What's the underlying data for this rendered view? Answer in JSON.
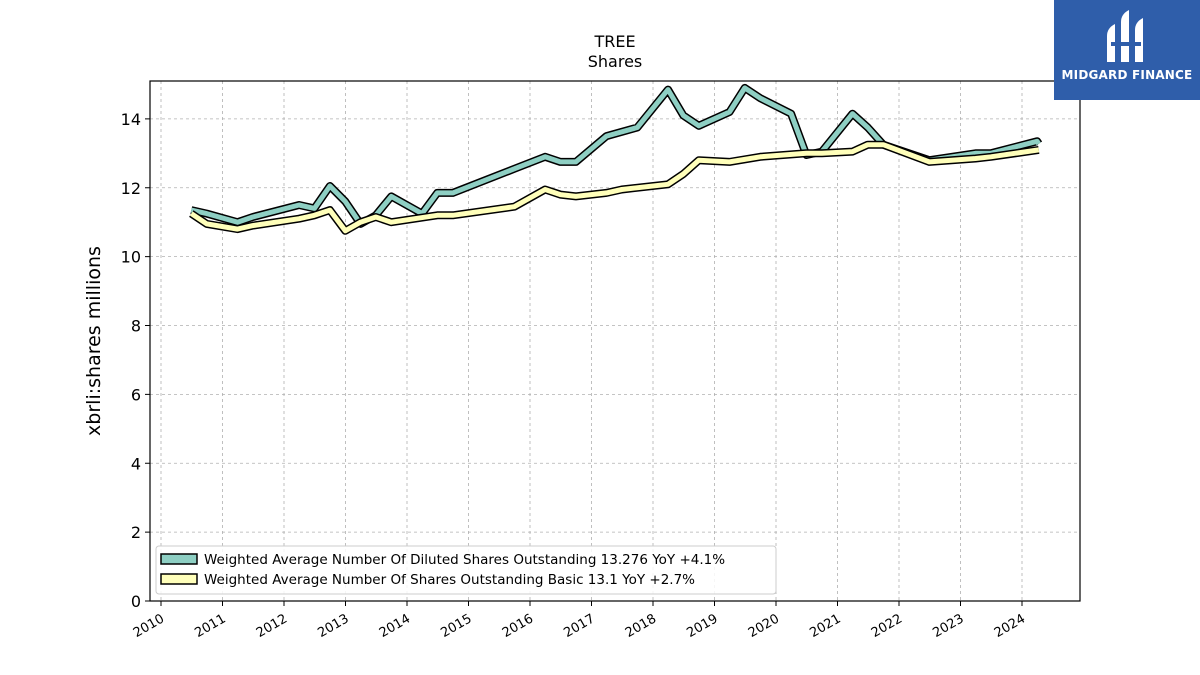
{
  "chart_data": {
    "type": "line",
    "title": "TREE",
    "subtitle": "Shares",
    "xlabel": "",
    "ylabel": "xbrli:shares millions",
    "ylim": [
      0,
      15.1
    ],
    "yticks": [
      "0",
      "2",
      "4",
      "6",
      "8",
      "10",
      "12",
      "14"
    ],
    "xticks": [
      "2010",
      "2011",
      "2012",
      "2013",
      "2014",
      "2015",
      "2016",
      "2017",
      "2018",
      "2019",
      "2020",
      "2021",
      "2022",
      "2023",
      "2024"
    ],
    "grid": true,
    "legend_position": "lower-left",
    "series": [
      {
        "name": "Weighted Average Number Of Diluted Shares Outstanding  13.276 YoY +4.1%",
        "color": "#8ecfc3",
        "points": [
          [
            "2010-06-30",
            11.35
          ],
          [
            "2010-09-30",
            11.25
          ],
          [
            "2011-03-31",
            11.0
          ],
          [
            "2011-06-30",
            11.15
          ],
          [
            "2012-03-31",
            11.5
          ],
          [
            "2012-06-30",
            11.4
          ],
          [
            "2012-09-30",
            12.05
          ],
          [
            "2012-12-31",
            11.6
          ],
          [
            "2013-03-31",
            10.95
          ],
          [
            "2013-06-30",
            11.2
          ],
          [
            "2013-09-30",
            11.75
          ],
          [
            "2014-03-31",
            11.25
          ],
          [
            "2014-06-30",
            11.85
          ],
          [
            "2014-09-30",
            11.85
          ],
          [
            "2015-09-30",
            12.55
          ],
          [
            "2016-03-31",
            12.9
          ],
          [
            "2016-06-30",
            12.75
          ],
          [
            "2016-09-30",
            12.75
          ],
          [
            "2017-03-31",
            13.5
          ],
          [
            "2017-09-30",
            13.75
          ],
          [
            "2018-03-31",
            14.85
          ],
          [
            "2018-06-30",
            14.1
          ],
          [
            "2018-09-30",
            13.8
          ],
          [
            "2019-03-31",
            14.2
          ],
          [
            "2019-06-30",
            14.9
          ],
          [
            "2019-09-30",
            14.6
          ],
          [
            "2020-03-31",
            14.15
          ],
          [
            "2020-06-30",
            12.95
          ],
          [
            "2020-09-30",
            13.05
          ],
          [
            "2021-03-31",
            14.15
          ],
          [
            "2021-06-30",
            13.75
          ],
          [
            "2021-09-30",
            13.25
          ],
          [
            "2022-06-30",
            12.8
          ],
          [
            "2023-03-31",
            13.0
          ],
          [
            "2023-06-30",
            13.0
          ],
          [
            "2024-03-31",
            13.35
          ],
          [
            "2024-04-10",
            13.276
          ]
        ]
      },
      {
        "name": "Weighted Average Number Of Shares Outstanding Basic  13.1 YoY +2.7%",
        "color": "#ffffba",
        "points": [
          [
            "2010-06-30",
            11.25
          ],
          [
            "2010-09-30",
            10.95
          ],
          [
            "2011-03-31",
            10.8
          ],
          [
            "2011-06-30",
            10.9
          ],
          [
            "2012-03-31",
            11.1
          ],
          [
            "2012-06-30",
            11.2
          ],
          [
            "2012-09-30",
            11.35
          ],
          [
            "2012-12-31",
            10.75
          ],
          [
            "2013-03-31",
            11.0
          ],
          [
            "2013-06-30",
            11.15
          ],
          [
            "2013-09-30",
            11.0
          ],
          [
            "2014-06-30",
            11.2
          ],
          [
            "2014-09-30",
            11.2
          ],
          [
            "2015-09-30",
            11.45
          ],
          [
            "2016-03-31",
            11.95
          ],
          [
            "2016-06-30",
            11.8
          ],
          [
            "2016-09-30",
            11.75
          ],
          [
            "2017-03-31",
            11.85
          ],
          [
            "2017-06-30",
            11.95
          ],
          [
            "2018-03-31",
            12.1
          ],
          [
            "2018-06-30",
            12.4
          ],
          [
            "2018-09-30",
            12.8
          ],
          [
            "2019-03-31",
            12.75
          ],
          [
            "2019-09-30",
            12.9
          ],
          [
            "2020-06-30",
            13.0
          ],
          [
            "2020-09-30",
            13.0
          ],
          [
            "2021-03-31",
            13.05
          ],
          [
            "2021-06-30",
            13.25
          ],
          [
            "2021-09-30",
            13.25
          ],
          [
            "2022-06-30",
            12.75
          ],
          [
            "2023-03-31",
            12.85
          ],
          [
            "2023-06-30",
            12.9
          ],
          [
            "2024-04-10",
            13.1
          ]
        ]
      }
    ]
  },
  "logo": {
    "text": "MIDGARD FINANCE",
    "color": "#2f5eaa"
  }
}
